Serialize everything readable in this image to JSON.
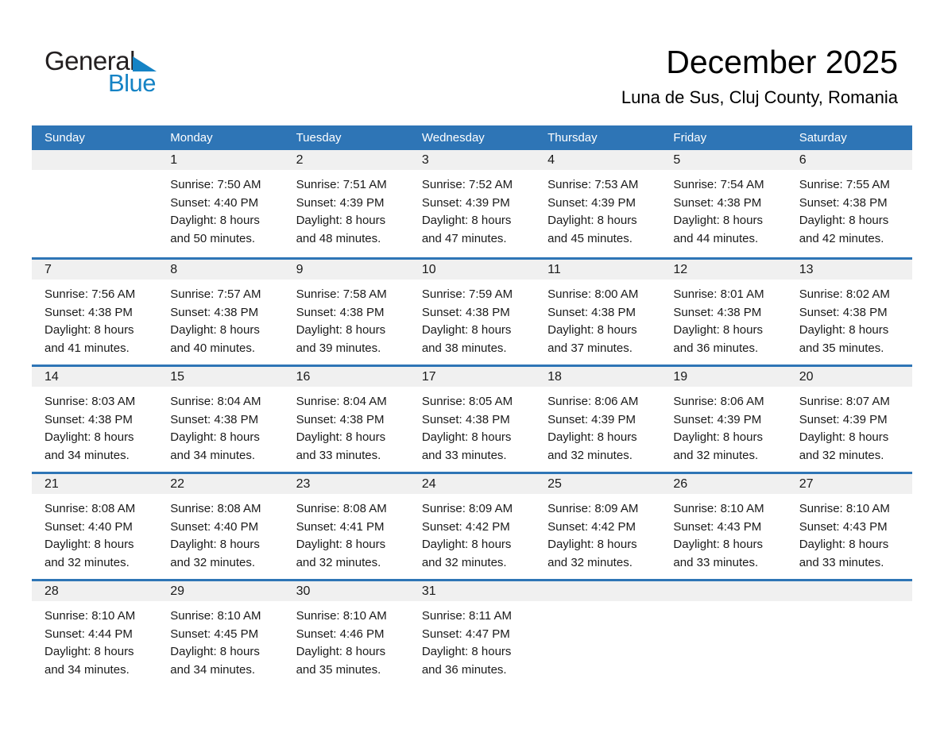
{
  "logo": {
    "text_black": "General",
    "text_blue": "Blue"
  },
  "header": {
    "title": "December 2025",
    "location": "Luna de Sus, Cluj County, Romania"
  },
  "colors": {
    "header_bg": "#2E75B6",
    "row_divider": "#2E75B6",
    "day_strip_bg": "#F0F0F0",
    "logo_blue": "#1583C5",
    "text": "#1A1A1A"
  },
  "calendar": {
    "weekday_headers": [
      "Sunday",
      "Monday",
      "Tuesday",
      "Wednesday",
      "Thursday",
      "Friday",
      "Saturday"
    ],
    "weeks": [
      [
        null,
        {
          "day": "1",
          "lines": [
            "Sunrise: 7:50 AM",
            "Sunset: 4:40 PM",
            "Daylight: 8 hours",
            "and 50 minutes."
          ]
        },
        {
          "day": "2",
          "lines": [
            "Sunrise: 7:51 AM",
            "Sunset: 4:39 PM",
            "Daylight: 8 hours",
            "and 48 minutes."
          ]
        },
        {
          "day": "3",
          "lines": [
            "Sunrise: 7:52 AM",
            "Sunset: 4:39 PM",
            "Daylight: 8 hours",
            "and 47 minutes."
          ]
        },
        {
          "day": "4",
          "lines": [
            "Sunrise: 7:53 AM",
            "Sunset: 4:39 PM",
            "Daylight: 8 hours",
            "and 45 minutes."
          ]
        },
        {
          "day": "5",
          "lines": [
            "Sunrise: 7:54 AM",
            "Sunset: 4:38 PM",
            "Daylight: 8 hours",
            "and 44 minutes."
          ]
        },
        {
          "day": "6",
          "lines": [
            "Sunrise: 7:55 AM",
            "Sunset: 4:38 PM",
            "Daylight: 8 hours",
            "and 42 minutes."
          ]
        }
      ],
      [
        {
          "day": "7",
          "lines": [
            "Sunrise: 7:56 AM",
            "Sunset: 4:38 PM",
            "Daylight: 8 hours",
            "and 41 minutes."
          ]
        },
        {
          "day": "8",
          "lines": [
            "Sunrise: 7:57 AM",
            "Sunset: 4:38 PM",
            "Daylight: 8 hours",
            "and 40 minutes."
          ]
        },
        {
          "day": "9",
          "lines": [
            "Sunrise: 7:58 AM",
            "Sunset: 4:38 PM",
            "Daylight: 8 hours",
            "and 39 minutes."
          ]
        },
        {
          "day": "10",
          "lines": [
            "Sunrise: 7:59 AM",
            "Sunset: 4:38 PM",
            "Daylight: 8 hours",
            "and 38 minutes."
          ]
        },
        {
          "day": "11",
          "lines": [
            "Sunrise: 8:00 AM",
            "Sunset: 4:38 PM",
            "Daylight: 8 hours",
            "and 37 minutes."
          ]
        },
        {
          "day": "12",
          "lines": [
            "Sunrise: 8:01 AM",
            "Sunset: 4:38 PM",
            "Daylight: 8 hours",
            "and 36 minutes."
          ]
        },
        {
          "day": "13",
          "lines": [
            "Sunrise: 8:02 AM",
            "Sunset: 4:38 PM",
            "Daylight: 8 hours",
            "and 35 minutes."
          ]
        }
      ],
      [
        {
          "day": "14",
          "lines": [
            "Sunrise: 8:03 AM",
            "Sunset: 4:38 PM",
            "Daylight: 8 hours",
            "and 34 minutes."
          ]
        },
        {
          "day": "15",
          "lines": [
            "Sunrise: 8:04 AM",
            "Sunset: 4:38 PM",
            "Daylight: 8 hours",
            "and 34 minutes."
          ]
        },
        {
          "day": "16",
          "lines": [
            "Sunrise: 8:04 AM",
            "Sunset: 4:38 PM",
            "Daylight: 8 hours",
            "and 33 minutes."
          ]
        },
        {
          "day": "17",
          "lines": [
            "Sunrise: 8:05 AM",
            "Sunset: 4:38 PM",
            "Daylight: 8 hours",
            "and 33 minutes."
          ]
        },
        {
          "day": "18",
          "lines": [
            "Sunrise: 8:06 AM",
            "Sunset: 4:39 PM",
            "Daylight: 8 hours",
            "and 32 minutes."
          ]
        },
        {
          "day": "19",
          "lines": [
            "Sunrise: 8:06 AM",
            "Sunset: 4:39 PM",
            "Daylight: 8 hours",
            "and 32 minutes."
          ]
        },
        {
          "day": "20",
          "lines": [
            "Sunrise: 8:07 AM",
            "Sunset: 4:39 PM",
            "Daylight: 8 hours",
            "and 32 minutes."
          ]
        }
      ],
      [
        {
          "day": "21",
          "lines": [
            "Sunrise: 8:08 AM",
            "Sunset: 4:40 PM",
            "Daylight: 8 hours",
            "and 32 minutes."
          ]
        },
        {
          "day": "22",
          "lines": [
            "Sunrise: 8:08 AM",
            "Sunset: 4:40 PM",
            "Daylight: 8 hours",
            "and 32 minutes."
          ]
        },
        {
          "day": "23",
          "lines": [
            "Sunrise: 8:08 AM",
            "Sunset: 4:41 PM",
            "Daylight: 8 hours",
            "and 32 minutes."
          ]
        },
        {
          "day": "24",
          "lines": [
            "Sunrise: 8:09 AM",
            "Sunset: 4:42 PM",
            "Daylight: 8 hours",
            "and 32 minutes."
          ]
        },
        {
          "day": "25",
          "lines": [
            "Sunrise: 8:09 AM",
            "Sunset: 4:42 PM",
            "Daylight: 8 hours",
            "and 32 minutes."
          ]
        },
        {
          "day": "26",
          "lines": [
            "Sunrise: 8:10 AM",
            "Sunset: 4:43 PM",
            "Daylight: 8 hours",
            "and 33 minutes."
          ]
        },
        {
          "day": "27",
          "lines": [
            "Sunrise: 8:10 AM",
            "Sunset: 4:43 PM",
            "Daylight: 8 hours",
            "and 33 minutes."
          ]
        }
      ],
      [
        {
          "day": "28",
          "lines": [
            "Sunrise: 8:10 AM",
            "Sunset: 4:44 PM",
            "Daylight: 8 hours",
            "and 34 minutes."
          ]
        },
        {
          "day": "29",
          "lines": [
            "Sunrise: 8:10 AM",
            "Sunset: 4:45 PM",
            "Daylight: 8 hours",
            "and 34 minutes."
          ]
        },
        {
          "day": "30",
          "lines": [
            "Sunrise: 8:10 AM",
            "Sunset: 4:46 PM",
            "Daylight: 8 hours",
            "and 35 minutes."
          ]
        },
        {
          "day": "31",
          "lines": [
            "Sunrise: 8:11 AM",
            "Sunset: 4:47 PM",
            "Daylight: 8 hours",
            "and 36 minutes."
          ]
        },
        null,
        null,
        null
      ]
    ]
  }
}
